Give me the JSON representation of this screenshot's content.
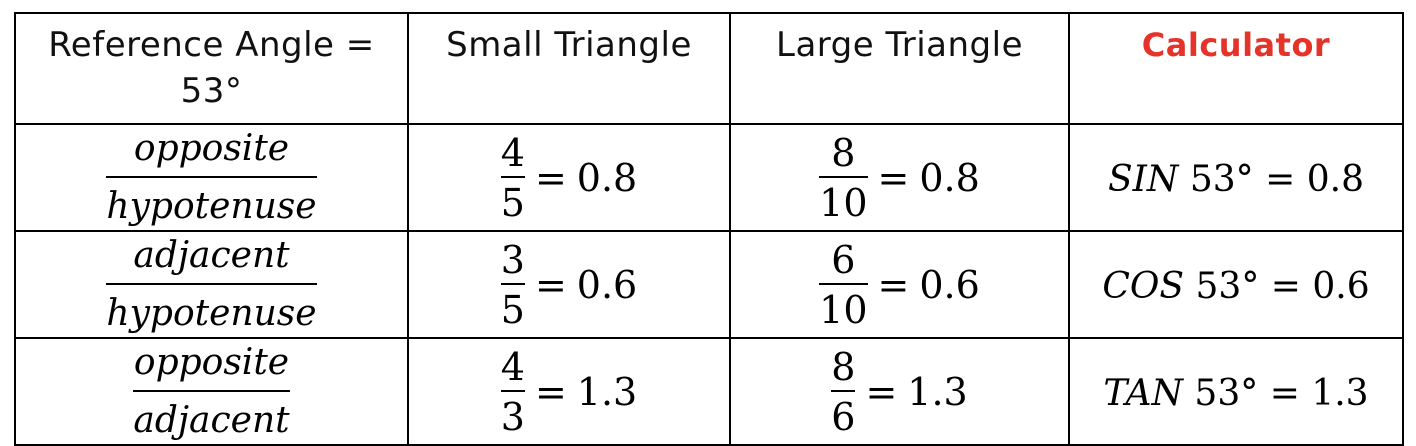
{
  "header": {
    "reference": "Reference Angle = 53°",
    "small": "Small Triangle",
    "large": "Large Triangle",
    "calculator": "Calculator"
  },
  "rows": [
    {
      "ratio_num": "opposite",
      "ratio_den": "hypotenuse",
      "small_num": "4",
      "small_den": "5",
      "small_eq": "=",
      "small_val": "0.8",
      "large_num": "8",
      "large_den": "10",
      "large_eq": "=",
      "large_val": "0.8",
      "calc_fn": "SIN",
      "calc_angle": "53°",
      "calc_eq": "=",
      "calc_val": "0.8"
    },
    {
      "ratio_num": "adjacent",
      "ratio_den": "hypotenuse",
      "small_num": "3",
      "small_den": "5",
      "small_eq": "=",
      "small_val": "0.6",
      "large_num": "6",
      "large_den": "10",
      "large_eq": "=",
      "large_val": "0.6",
      "calc_fn": "COS",
      "calc_angle": "53°",
      "calc_eq": "=",
      "calc_val": "0.6"
    },
    {
      "ratio_num": "opposite",
      "ratio_den": "adjacent",
      "small_num": "4",
      "small_den": "3",
      "small_eq": "=",
      "small_val": "1.3",
      "large_num": "8",
      "large_den": "6",
      "large_eq": "=",
      "large_val": "1.3",
      "calc_fn": "TAN",
      "calc_angle": "53°",
      "calc_eq": "=",
      "calc_val": "1.3"
    }
  ],
  "colors": {
    "calculator_header": "#e5332a",
    "text": "#000000"
  }
}
